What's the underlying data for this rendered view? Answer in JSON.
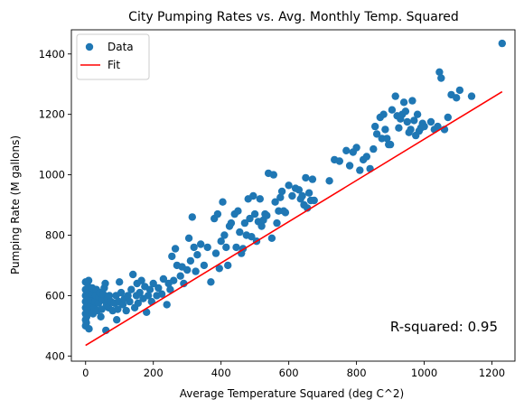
{
  "chart_data": {
    "type": "scatter",
    "title": "City Pumping Rates vs. Avg. Monthly Temp. Squared",
    "xlabel": "Average Temperature Squared (deg C^2)",
    "ylabel": "Pumping Rate (M gallons)",
    "xlim": [
      -42,
      1268
    ],
    "ylim": [
      383,
      1480
    ],
    "x_ticks": [
      0,
      200,
      400,
      600,
      800,
      1000,
      1200
    ],
    "y_ticks": [
      400,
      600,
      800,
      1000,
      1200,
      1400
    ],
    "legend": {
      "placement": "top-left",
      "entries": [
        "Data",
        "Fit"
      ]
    },
    "annotation": "R-squared: 0.95",
    "colors": {
      "data": "#1f77b4",
      "fit": "#ff0000"
    },
    "series": [
      {
        "name": "Data",
        "kind": "scatter",
        "points": [
          [
            0,
            500
          ],
          [
            0,
            520
          ],
          [
            0,
            540
          ],
          [
            0,
            560
          ],
          [
            0,
            580
          ],
          [
            0,
            600
          ],
          [
            0,
            620
          ],
          [
            0,
            645
          ],
          [
            2,
            510
          ],
          [
            3,
            530
          ],
          [
            4,
            555
          ],
          [
            5,
            575
          ],
          [
            5,
            595
          ],
          [
            6,
            615
          ],
          [
            8,
            630
          ],
          [
            9,
            650
          ],
          [
            10,
            490
          ],
          [
            12,
            545
          ],
          [
            14,
            565
          ],
          [
            16,
            585
          ],
          [
            18,
            605
          ],
          [
            20,
            625
          ],
          [
            22,
            540
          ],
          [
            25,
            560
          ],
          [
            28,
            580
          ],
          [
            30,
            600
          ],
          [
            32,
            620
          ],
          [
            35,
            550
          ],
          [
            38,
            575
          ],
          [
            40,
            595
          ],
          [
            42,
            610
          ],
          [
            45,
            530
          ],
          [
            48,
            555
          ],
          [
            50,
            585
          ],
          [
            52,
            605
          ],
          [
            55,
            625
          ],
          [
            58,
            640
          ],
          [
            60,
            485
          ],
          [
            62,
            570
          ],
          [
            65,
            590
          ],
          [
            68,
            560
          ],
          [
            70,
            600
          ],
          [
            75,
            580
          ],
          [
            80,
            550
          ],
          [
            85,
            575
          ],
          [
            90,
            600
          ],
          [
            92,
            520
          ],
          [
            95,
            555
          ],
          [
            98,
            580
          ],
          [
            100,
            645
          ],
          [
            105,
            610
          ],
          [
            110,
            570
          ],
          [
            115,
            590
          ],
          [
            120,
            550
          ],
          [
            125,
            600
          ],
          [
            130,
            580
          ],
          [
            135,
            620
          ],
          [
            140,
            670
          ],
          [
            145,
            560
          ],
          [
            150,
            600
          ],
          [
            152,
            640
          ],
          [
            155,
            575
          ],
          [
            160,
            610
          ],
          [
            165,
            650
          ],
          [
            170,
            590
          ],
          [
            175,
            630
          ],
          [
            180,
            545
          ],
          [
            185,
            600
          ],
          [
            190,
            620
          ],
          [
            195,
            580
          ],
          [
            200,
            640
          ],
          [
            210,
            600
          ],
          [
            215,
            625
          ],
          [
            225,
            605
          ],
          [
            230,
            655
          ],
          [
            240,
            570
          ],
          [
            245,
            640
          ],
          [
            250,
            620
          ],
          [
            255,
            730
          ],
          [
            260,
            650
          ],
          [
            265,
            755
          ],
          [
            270,
            700
          ],
          [
            280,
            665
          ],
          [
            285,
            695
          ],
          [
            290,
            640
          ],
          [
            300,
            685
          ],
          [
            305,
            790
          ],
          [
            310,
            715
          ],
          [
            315,
            860
          ],
          [
            320,
            760
          ],
          [
            325,
            680
          ],
          [
            330,
            735
          ],
          [
            340,
            770
          ],
          [
            350,
            700
          ],
          [
            360,
            760
          ],
          [
            370,
            645
          ],
          [
            380,
            855
          ],
          [
            385,
            740
          ],
          [
            390,
            870
          ],
          [
            395,
            690
          ],
          [
            400,
            780
          ],
          [
            405,
            910
          ],
          [
            410,
            800
          ],
          [
            415,
            760
          ],
          [
            420,
            700
          ],
          [
            425,
            830
          ],
          [
            430,
            840
          ],
          [
            440,
            870
          ],
          [
            445,
            760
          ],
          [
            450,
            880
          ],
          [
            455,
            810
          ],
          [
            460,
            740
          ],
          [
            465,
            755
          ],
          [
            470,
            840
          ],
          [
            475,
            800
          ],
          [
            480,
            920
          ],
          [
            485,
            855
          ],
          [
            490,
            795
          ],
          [
            495,
            930
          ],
          [
            500,
            870
          ],
          [
            505,
            780
          ],
          [
            510,
            845
          ],
          [
            515,
            920
          ],
          [
            520,
            830
          ],
          [
            525,
            850
          ],
          [
            530,
            870
          ],
          [
            535,
            865
          ],
          [
            540,
            1005
          ],
          [
            550,
            790
          ],
          [
            555,
            1000
          ],
          [
            560,
            910
          ],
          [
            565,
            840
          ],
          [
            570,
            880
          ],
          [
            575,
            925
          ],
          [
            580,
            945
          ],
          [
            585,
            880
          ],
          [
            590,
            875
          ],
          [
            600,
            965
          ],
          [
            610,
            930
          ],
          [
            620,
            955
          ],
          [
            630,
            950
          ],
          [
            635,
            920
          ],
          [
            640,
            930
          ],
          [
            645,
            900
          ],
          [
            650,
            990
          ],
          [
            655,
            890
          ],
          [
            660,
            940
          ],
          [
            665,
            915
          ],
          [
            670,
            985
          ],
          [
            675,
            915
          ],
          [
            720,
            980
          ],
          [
            735,
            1050
          ],
          [
            750,
            1045
          ],
          [
            770,
            1080
          ],
          [
            780,
            1030
          ],
          [
            790,
            1075
          ],
          [
            800,
            1090
          ],
          [
            810,
            1015
          ],
          [
            820,
            1050
          ],
          [
            830,
            1060
          ],
          [
            840,
            1020
          ],
          [
            850,
            1085
          ],
          [
            855,
            1160
          ],
          [
            860,
            1135
          ],
          [
            870,
            1190
          ],
          [
            875,
            1120
          ],
          [
            880,
            1200
          ],
          [
            885,
            1150
          ],
          [
            890,
            1120
          ],
          [
            895,
            1100
          ],
          [
            900,
            1100
          ],
          [
            905,
            1215
          ],
          [
            915,
            1260
          ],
          [
            920,
            1195
          ],
          [
            925,
            1155
          ],
          [
            930,
            1185
          ],
          [
            935,
            1200
          ],
          [
            940,
            1240
          ],
          [
            945,
            1210
          ],
          [
            950,
            1175
          ],
          [
            955,
            1140
          ],
          [
            960,
            1150
          ],
          [
            965,
            1245
          ],
          [
            970,
            1180
          ],
          [
            975,
            1130
          ],
          [
            980,
            1200
          ],
          [
            985,
            1145
          ],
          [
            990,
            1155
          ],
          [
            995,
            1170
          ],
          [
            1000,
            1160
          ],
          [
            1020,
            1175
          ],
          [
            1030,
            1150
          ],
          [
            1040,
            1160
          ],
          [
            1045,
            1340
          ],
          [
            1050,
            1320
          ],
          [
            1060,
            1150
          ],
          [
            1070,
            1190
          ],
          [
            1080,
            1265
          ],
          [
            1095,
            1255
          ],
          [
            1105,
            1280
          ],
          [
            1140,
            1260
          ],
          [
            1230,
            1435
          ]
        ]
      },
      {
        "name": "Fit",
        "kind": "line",
        "points": [
          [
            0,
            435
          ],
          [
            1230,
            1275
          ]
        ]
      }
    ]
  }
}
